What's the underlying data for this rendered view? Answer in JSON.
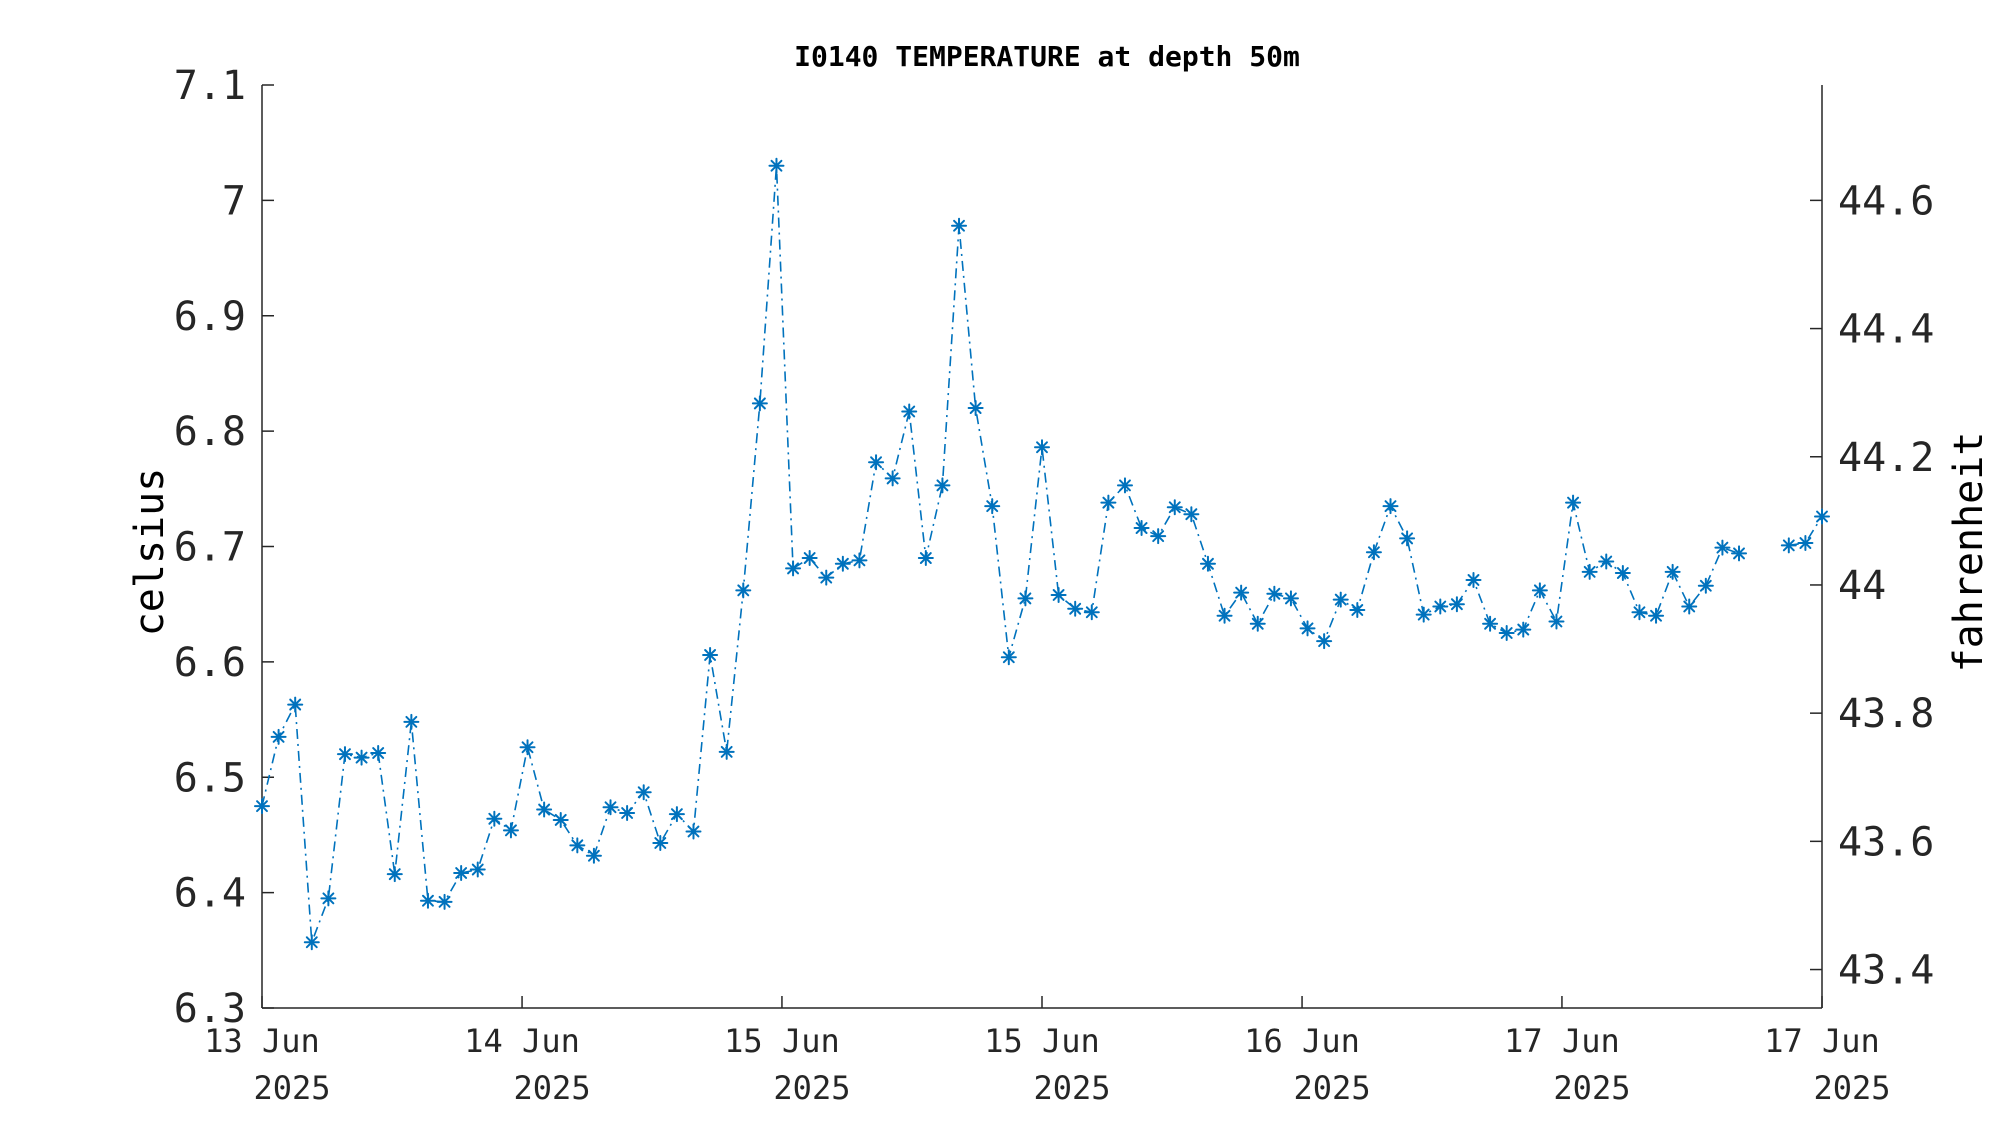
{
  "chart_data": {
    "type": "line",
    "title": "I0140 TEMPERATURE at depth 50m",
    "ylabel": "celsius",
    "y2label": "fahrenheit",
    "xlabel": "",
    "ylim": [
      6.3,
      7.1
    ],
    "y_ticks": [
      6.3,
      6.4,
      6.5,
      6.6,
      6.7,
      6.8,
      6.9,
      7.0,
      7.1
    ],
    "y_tick_labels": [
      "6.3",
      "6.4",
      "6.5",
      "6.6",
      "6.7",
      "6.8",
      "6.9",
      "7",
      "7.1"
    ],
    "y2_ticks": [
      43.4,
      43.6,
      43.8,
      44.0,
      44.2,
      44.4,
      44.6
    ],
    "y2_tick_labels": [
      "43.4",
      "43.6",
      "43.8",
      "44",
      "44.2",
      "44.4",
      "44.6"
    ],
    "x_ticks": [
      {
        "line1": "13 Jun",
        "line2": "2025"
      },
      {
        "line1": "14 Jun",
        "line2": "2025"
      },
      {
        "line1": "15 Jun",
        "line2": "2025"
      },
      {
        "line1": "15 Jun",
        "line2": "2025"
      },
      {
        "line1": "16 Jun",
        "line2": "2025"
      },
      {
        "line1": "17 Jun",
        "line2": "2025"
      },
      {
        "line1": "17 Jun",
        "line2": "2025"
      }
    ],
    "x_tick_index": [
      0,
      15.67,
      31.33,
      47.0,
      62.67,
      78.33,
      94.0
    ],
    "x_range_index": [
      0,
      94
    ],
    "grid": false,
    "legend": "none",
    "color": "#0072BD",
    "line_style": "dash-dot",
    "marker": "asterisk",
    "series": [
      {
        "values": [
          6.475,
          6.535,
          6.563,
          6.357,
          6.395,
          6.52,
          6.517,
          6.521,
          6.416,
          6.548,
          6.393,
          6.392,
          6.417,
          6.42,
          6.464,
          6.454,
          6.526,
          6.472,
          6.463,
          6.441,
          6.432,
          6.474,
          6.469,
          6.487,
          6.443,
          6.468,
          6.453,
          6.606,
          6.522,
          6.662,
          6.824,
          7.03,
          6.681,
          6.69,
          6.673,
          6.685,
          6.688,
          6.773,
          6.759,
          6.817,
          6.69,
          6.753,
          6.978,
          6.82,
          6.735,
          6.604,
          6.655,
          6.786,
          6.658,
          6.646,
          6.643,
          6.738,
          6.753,
          6.716,
          6.709,
          6.734,
          6.728,
          6.685,
          6.64,
          6.66,
          6.633,
          6.659,
          6.655,
          6.629,
          6.618,
          6.654,
          6.645,
          6.695,
          6.735,
          6.707,
          6.641,
          6.648,
          6.65,
          6.671,
          6.633,
          6.625,
          6.628,
          6.662,
          6.635,
          6.738,
          6.678,
          6.687,
          6.677,
          6.643,
          6.64,
          6.678,
          6.648,
          6.666,
          6.699,
          6.694,
          null,
          null,
          6.701,
          6.703,
          6.726
        ]
      }
    ]
  }
}
